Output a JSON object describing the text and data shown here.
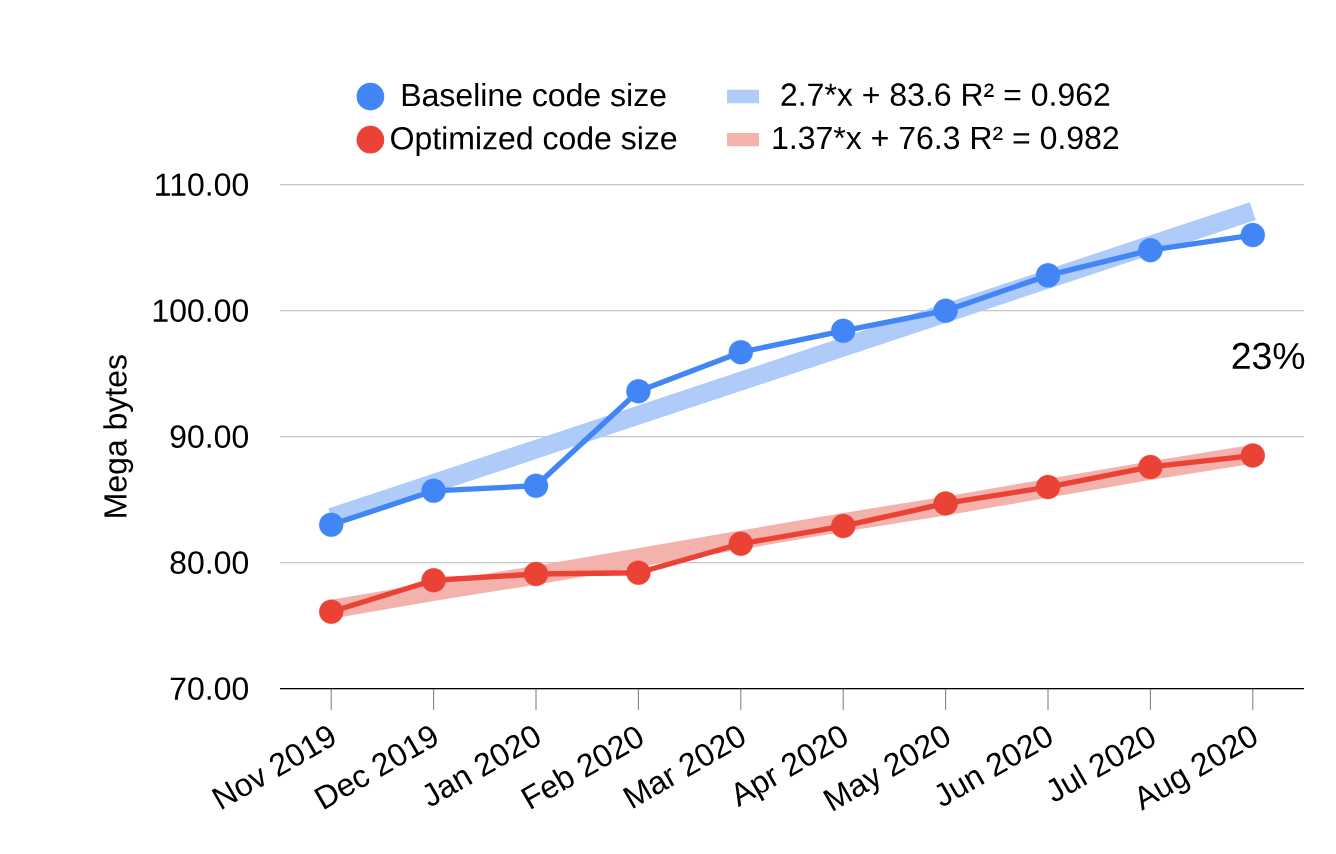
{
  "chart_data": {
    "type": "line",
    "ylabel": "Mega bytes",
    "categories": [
      "Nov 2019",
      "Dec 2019",
      "Jan 2020",
      "Feb 2020",
      "Mar 2020",
      "Apr 2020",
      "May 2020",
      "Jun 2020",
      "Jul 2020",
      "Aug 2020"
    ],
    "series": [
      {
        "name": "Baseline code size",
        "color": "#4285f4",
        "values": [
          83.0,
          85.7,
          86.1,
          93.6,
          96.7,
          98.4,
          100.0,
          102.8,
          104.8,
          106.0
        ]
      },
      {
        "name": "Optimized code size",
        "color": "#ea4335",
        "values": [
          76.1,
          78.6,
          79.1,
          79.2,
          81.5,
          82.9,
          84.7,
          86.0,
          87.6,
          88.5
        ]
      },
      {
        "name": "2.7*x + 83.6 R² = 0.962",
        "color": "#aecbfa",
        "type": "line",
        "marker": "none",
        "values": [
          83.6,
          86.3,
          89.0,
          91.7,
          94.4,
          97.1,
          99.8,
          102.5,
          105.2,
          107.9
        ]
      },
      {
        "name": "1.37*x + 76.3 R² = 0.982",
        "color": "#f4b2ac",
        "type": "line",
        "marker": "none",
        "values": [
          76.3,
          77.7,
          79.0,
          80.4,
          81.8,
          83.2,
          84.5,
          85.9,
          87.3,
          88.6
        ]
      }
    ],
    "ylim": [
      70,
      110
    ],
    "yticks": [
      {
        "value": 70,
        "label": "70.00"
      },
      {
        "value": 80,
        "label": "80.00"
      },
      {
        "value": 90,
        "label": "90.00"
      },
      {
        "value": 100,
        "label": "100.00"
      },
      {
        "value": 110,
        "label": "110.00"
      }
    ],
    "grid": "y",
    "legend": "top",
    "marker": "circle",
    "annotations": [
      "23%"
    ]
  }
}
